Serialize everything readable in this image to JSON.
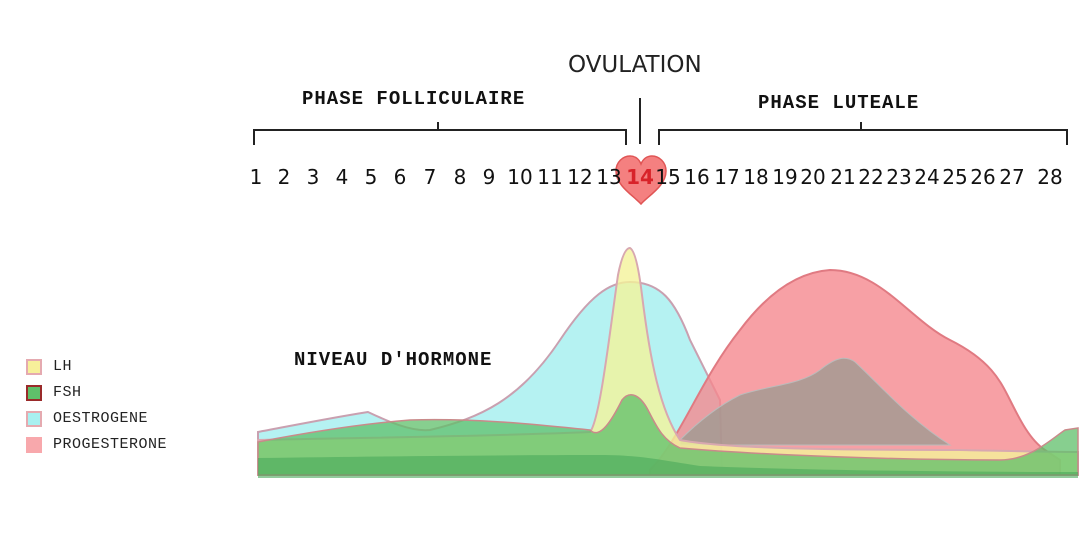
{
  "ovulation_label": "OVULATION",
  "phases": {
    "follicular": "PHASE FOLLICULAIRE",
    "luteal": "PHASE LUTEALE"
  },
  "days": [
    "1",
    "2",
    "3",
    "4",
    "5",
    "6",
    "7",
    "8",
    "9",
    "10",
    "11",
    "12",
    "13",
    "14",
    "15",
    "16",
    "17",
    "18",
    "19",
    "20",
    "21",
    "22",
    "23",
    "24",
    "25",
    "26",
    "27",
    "28"
  ],
  "ovulation_day": "14",
  "y_label": "NIVEAU D'HORMONE",
  "legend": [
    {
      "name": "LH",
      "color": "#f7f09a",
      "border": "#e5aab0"
    },
    {
      "name": "FSH",
      "color": "#5fbf6a",
      "border": "#9a2a2a"
    },
    {
      "name": "OESTROGENE",
      "color": "#a8f0f0",
      "border": "#e5aab0"
    },
    {
      "name": "PROGESTERONE",
      "color": "#f8a8ac",
      "border": "#f8a8ac"
    }
  ],
  "colors": {
    "heart": "#f26a6a",
    "oestrogene": "#a8f0f0",
    "progesterone": "#f5888e",
    "lh": "#f4f29a",
    "fsh": "#5fbf6a"
  }
}
